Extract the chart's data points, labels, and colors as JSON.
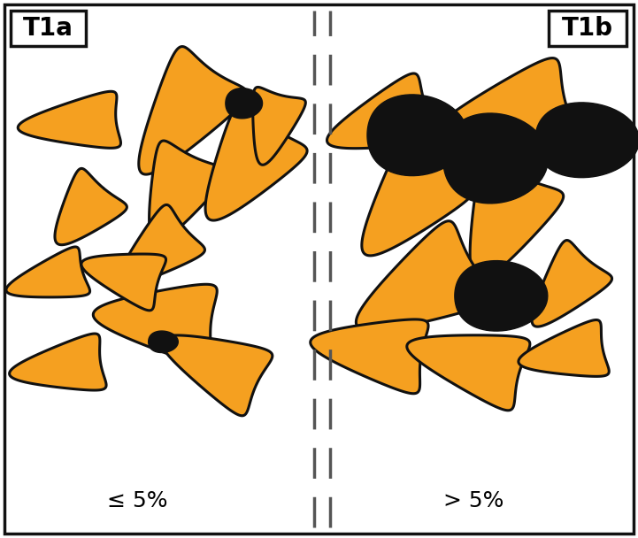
{
  "title_left": "T1a",
  "title_right": "T1b",
  "label_left": "≤ 5%",
  "label_right": "> 5%",
  "bg_color": "#ffffff",
  "orange_light": "#FFCC77",
  "orange_mid": "#F5A020",
  "orange_dark": "#E08010",
  "black_fill": "#111111",
  "outline_color": "#111111",
  "figsize": [
    7.21,
    6.08
  ],
  "dpi": 100
}
